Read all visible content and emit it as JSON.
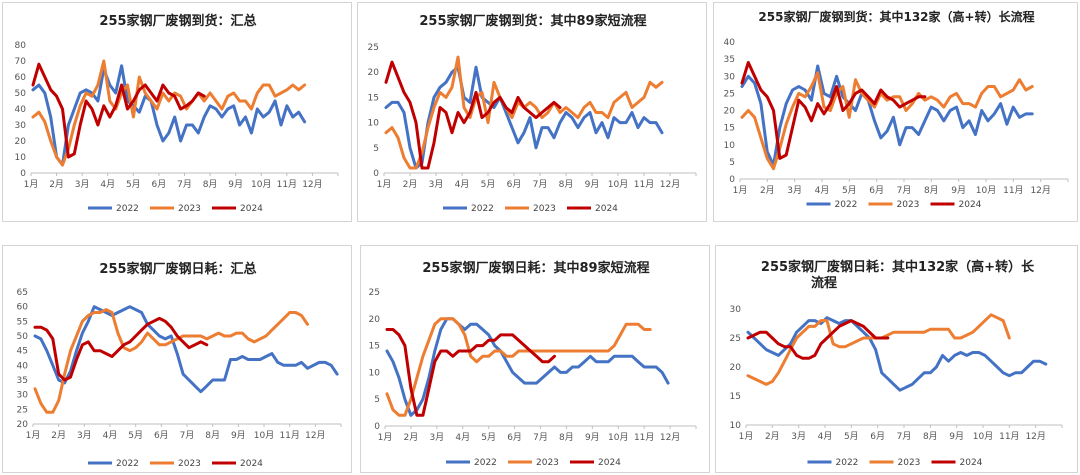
{
  "legend_labels": [
    "2022",
    "2023",
    "2024"
  ],
  "colors": {
    "2022": "#4472c4",
    "2023": "#ed7d31",
    "2024": "#c00000"
  },
  "chart_data": [
    {
      "type": "line",
      "title": "255家钢厂废钢到货：汇总",
      "title2": "",
      "x_ticks": [
        "1月",
        "2月",
        "3月",
        "4月",
        "5月",
        "6月",
        "7月",
        "8月",
        "9月",
        "10月",
        "11月",
        "12月"
      ],
      "y_ticks": [
        "0",
        "10",
        "20",
        "30",
        "40",
        "50",
        "60",
        "70",
        "80"
      ],
      "ylim": [
        0,
        80
      ],
      "series": [
        {
          "name": "2022",
          "values": [
            52,
            55,
            50,
            35,
            10,
            5,
            30,
            40,
            50,
            52,
            50,
            45,
            65,
            55,
            50,
            67,
            45,
            42,
            38,
            48,
            45,
            30,
            20,
            25,
            35,
            20,
            30,
            30,
            25,
            35,
            42,
            40,
            35,
            40,
            42,
            30,
            35,
            25,
            40,
            35,
            38,
            45,
            30,
            42,
            35,
            38,
            32
          ]
        },
        {
          "name": "2023",
          "values": [
            35,
            38,
            32,
            20,
            10,
            5,
            15,
            30,
            42,
            50,
            48,
            55,
            70,
            45,
            40,
            50,
            55,
            35,
            60,
            50,
            45,
            40,
            50,
            45,
            50,
            48,
            40,
            45,
            50,
            45,
            50,
            45,
            40,
            48,
            50,
            45,
            45,
            40,
            50,
            55,
            55,
            48,
            50,
            52,
            55,
            52,
            55
          ]
        },
        {
          "name": "2024",
          "values": [
            55,
            68,
            60,
            52,
            48,
            40,
            10,
            12,
            30,
            45,
            40,
            30,
            42,
            35,
            42,
            55,
            40,
            45,
            52,
            55,
            50,
            45,
            55,
            50,
            48,
            40,
            42,
            45,
            50,
            48
          ]
        }
      ]
    },
    {
      "type": "line",
      "title": "255家钢厂废钢到货：其中89家短流程",
      "title2": "",
      "x_ticks": [
        "1月",
        "2月",
        "3月",
        "4月",
        "5月",
        "6月",
        "7月",
        "8月",
        "9月",
        "10月",
        "11月",
        "12月"
      ],
      "y_ticks": [
        "0",
        "5",
        "10",
        "15",
        "20",
        "25"
      ],
      "ylim": [
        0,
        25
      ],
      "series": [
        {
          "name": "2022",
          "values": [
            13,
            14,
            14,
            12,
            5,
            1,
            2,
            10,
            15,
            17,
            18,
            20,
            21,
            15,
            14,
            21,
            15,
            14,
            13,
            15,
            12,
            9,
            6,
            8,
            11,
            5,
            9,
            9,
            7,
            10,
            12,
            11,
            9,
            11,
            12,
            8,
            10,
            7,
            11,
            10,
            10,
            12,
            9,
            11,
            10,
            10,
            8
          ]
        },
        {
          "name": "2023",
          "values": [
            8,
            9,
            7,
            3,
            1,
            1,
            4,
            9,
            13,
            16,
            15,
            17,
            23,
            13,
            11,
            15,
            16,
            10,
            18,
            15,
            13,
            11,
            14,
            13,
            14,
            13,
            11,
            12,
            14,
            12,
            13,
            12,
            11,
            13,
            14,
            12,
            12,
            11,
            14,
            15,
            16,
            13,
            14,
            15,
            18,
            17,
            18
          ]
        },
        {
          "name": "2024",
          "values": [
            18,
            22,
            19,
            16,
            14,
            10,
            1,
            1,
            6,
            13,
            12,
            8,
            12,
            10,
            12,
            16,
            11,
            12,
            14,
            15,
            13,
            12,
            15,
            13,
            12,
            11,
            12,
            13,
            14,
            13
          ]
        }
      ]
    },
    {
      "type": "line",
      "title": "255家钢厂废钢到货：其中132家（高+转）长流程",
      "title2": "",
      "x_ticks": [
        "1月",
        "2月",
        "3月",
        "4月",
        "5月",
        "6月",
        "7月",
        "8月",
        "9月",
        "10月",
        "11月",
        "12月"
      ],
      "y_ticks": [
        "0",
        "5",
        "10",
        "15",
        "20",
        "25",
        "30",
        "35",
        "40"
      ],
      "ylim": [
        0,
        40
      ],
      "series": [
        {
          "name": "2022",
          "values": [
            27,
            30,
            28,
            22,
            8,
            4,
            15,
            22,
            26,
            27,
            26,
            23,
            33,
            25,
            24,
            30,
            24,
            22,
            20,
            25,
            23,
            17,
            12,
            14,
            18,
            10,
            15,
            15,
            13,
            17,
            21,
            20,
            17,
            20,
            21,
            15,
            17,
            13,
            20,
            17,
            19,
            22,
            16,
            21,
            18,
            19,
            19
          ]
        },
        {
          "name": "2023",
          "values": [
            18,
            20,
            18,
            12,
            6,
            3,
            9,
            16,
            21,
            25,
            24,
            27,
            31,
            21,
            20,
            25,
            27,
            18,
            29,
            25,
            23,
            21,
            25,
            23,
            24,
            24,
            20,
            22,
            25,
            23,
            24,
            23,
            21,
            24,
            25,
            22,
            22,
            21,
            25,
            27,
            27,
            24,
            25,
            26,
            29,
            26,
            27
          ]
        },
        {
          "name": "2024",
          "values": [
            28,
            34,
            30,
            26,
            24,
            20,
            6,
            7,
            15,
            23,
            21,
            17,
            22,
            19,
            22,
            27,
            20,
            22,
            25,
            26,
            24,
            22,
            26,
            24,
            23,
            21,
            22,
            23,
            24,
            24
          ]
        }
      ]
    },
    {
      "type": "line",
      "title": "255家钢厂废钢日耗：汇总",
      "title2": "",
      "x_ticks": [
        "1月",
        "2月",
        "3月",
        "4月",
        "5月",
        "6月",
        "7月",
        "8月",
        "9月",
        "10月",
        "11月",
        "12月"
      ],
      "y_ticks": [
        "20",
        "25",
        "30",
        "35",
        "40",
        "45",
        "50",
        "55",
        "60",
        "65"
      ],
      "ylim": [
        20,
        65
      ],
      "series": [
        {
          "name": "2022",
          "values": [
            50,
            49,
            45,
            40,
            35,
            34,
            38,
            45,
            51,
            55,
            60,
            59,
            58,
            57,
            58,
            59,
            60,
            59,
            58,
            54,
            52,
            50,
            49,
            50,
            44,
            37,
            35,
            33,
            31,
            33,
            35,
            35,
            35,
            42,
            42,
            43,
            42,
            42,
            42,
            43,
            44,
            41,
            40,
            40,
            40,
            41,
            39,
            40,
            41,
            41,
            40,
            37
          ]
        },
        {
          "name": "2023",
          "values": [
            32,
            27,
            24,
            24,
            28,
            37,
            45,
            50,
            55,
            57,
            58,
            58,
            59,
            58,
            51,
            46,
            45,
            46,
            48,
            51,
            49,
            47,
            47,
            48,
            49,
            50,
            50,
            50,
            50,
            49,
            50,
            51,
            50,
            50,
            51,
            51,
            49,
            48,
            49,
            50,
            52,
            54,
            56,
            58,
            58,
            57,
            54
          ]
        },
        {
          "name": "2024",
          "values": [
            53,
            53,
            52,
            49,
            37,
            35,
            36,
            42,
            47,
            48,
            45,
            45,
            44,
            43,
            45,
            47,
            48,
            50,
            52,
            54,
            55,
            56,
            55,
            53,
            50,
            48,
            46,
            47,
            48,
            47
          ]
        }
      ]
    },
    {
      "type": "line",
      "title": "255家钢厂废钢日耗：其中89家短流程",
      "title2": "",
      "x_ticks": [
        "1月",
        "2月",
        "3月",
        "4月",
        "5月",
        "6月",
        "7月",
        "8月",
        "9月",
        "10月",
        "11月",
        "12月"
      ],
      "y_ticks": [
        "0",
        "5",
        "10",
        "15",
        "20",
        "25"
      ],
      "ylim": [
        0,
        25
      ],
      "series": [
        {
          "name": "2022",
          "values": [
            14,
            12,
            9,
            5,
            2,
            3,
            5,
            9,
            14,
            18,
            20,
            20,
            19,
            18,
            19,
            19,
            18,
            17,
            15,
            14,
            12,
            10,
            9,
            8,
            8,
            8,
            9,
            10,
            11,
            10,
            10,
            11,
            11,
            12,
            13,
            12,
            12,
            12,
            13,
            13,
            13,
            13,
            12,
            11,
            11,
            11,
            10,
            8
          ]
        },
        {
          "name": "2023",
          "values": [
            6,
            3,
            2,
            2,
            5,
            9,
            13,
            16,
            19,
            20,
            20,
            20,
            19,
            17,
            13,
            12,
            13,
            13,
            14,
            14,
            13,
            13,
            14,
            14,
            14,
            14,
            14,
            14,
            14,
            14,
            14,
            14,
            14,
            14,
            14,
            14,
            14,
            14,
            15,
            17,
            19,
            19,
            19,
            18,
            18
          ]
        },
        {
          "name": "2024",
          "values": [
            18,
            18,
            17,
            15,
            7,
            2,
            2,
            7,
            12,
            14,
            14,
            13,
            14,
            14,
            14,
            15,
            15,
            16,
            16,
            17,
            17,
            17,
            16,
            15,
            14,
            13,
            12,
            12,
            13
          ]
        }
      ]
    },
    {
      "type": "line",
      "title": "255家钢厂废钢日耗：其中132家（高+转）长",
      "title2": "流程",
      "x_ticks": [
        "1月",
        "2月",
        "3月",
        "4月",
        "5月",
        "6月",
        "7月",
        "8月",
        "9月",
        "10月",
        "11月",
        "12月"
      ],
      "y_ticks": [
        "10",
        "15",
        "20",
        "25",
        "30"
      ],
      "ylim": [
        10,
        30
      ],
      "series": [
        {
          "name": "2022",
          "values": [
            26,
            25,
            24,
            23,
            22.5,
            22,
            23,
            24,
            26,
            27,
            28,
            28,
            27.5,
            28.5,
            28,
            27.5,
            28,
            28,
            27,
            26,
            25,
            23,
            19,
            18,
            17,
            16,
            16.5,
            17,
            18,
            19,
            19,
            20,
            22,
            21,
            22,
            22.5,
            22,
            22.5,
            22.5,
            22,
            21,
            20,
            19,
            18.5,
            19,
            19,
            20,
            21,
            21,
            20.5
          ]
        },
        {
          "name": "2023",
          "values": [
            18.5,
            18,
            17.5,
            17,
            17.5,
            19,
            21,
            23,
            25,
            26,
            27,
            27,
            28,
            28,
            24,
            23.5,
            23.5,
            24,
            24.5,
            25,
            25,
            25,
            25,
            25.5,
            26,
            26,
            26,
            26,
            26,
            26,
            26.5,
            26.5,
            26.5,
            26.5,
            25,
            25,
            25.5,
            26,
            27,
            28,
            29,
            28.5,
            28,
            25
          ]
        },
        {
          "name": "2024",
          "values": [
            25,
            25.5,
            26,
            26,
            25,
            24,
            23.5,
            23.5,
            22,
            21.5,
            21.5,
            22,
            24,
            25,
            26,
            27,
            27.5,
            28,
            27.5,
            27,
            26,
            25,
            25,
            25
          ]
        }
      ]
    }
  ]
}
